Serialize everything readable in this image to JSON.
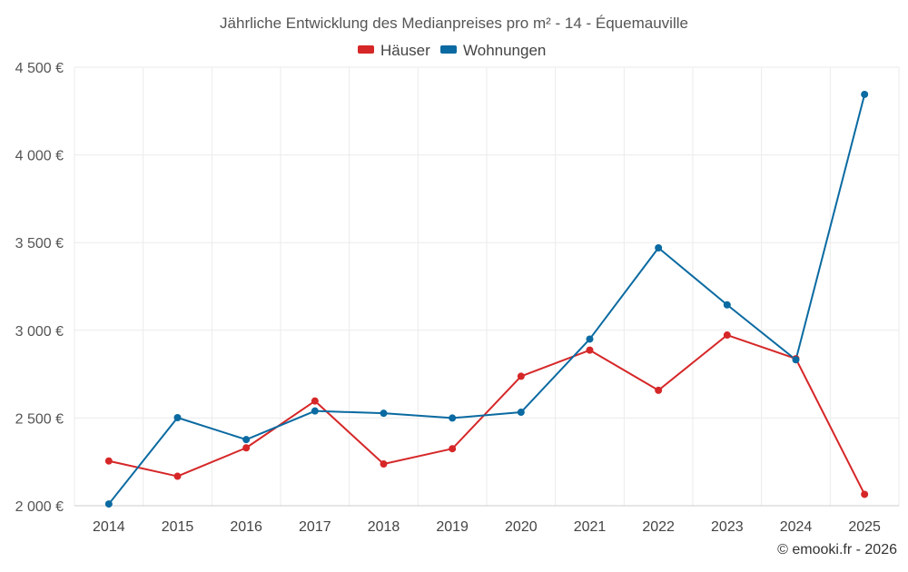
{
  "chart_data": {
    "type": "line",
    "title": "Jährliche Entwicklung des Medianpreises pro m² - 14 - Équemauville",
    "xlabel": "",
    "ylabel": "",
    "categories": [
      "2014",
      "2015",
      "2016",
      "2017",
      "2018",
      "2019",
      "2020",
      "2021",
      "2022",
      "2023",
      "2024",
      "2025"
    ],
    "ylim": [
      2000,
      4500
    ],
    "yticks": [
      2000,
      2500,
      3000,
      3500,
      4000,
      4500
    ],
    "ytick_labels": [
      "2 000 €",
      "2 500 €",
      "3 000 €",
      "3 500 €",
      "4 000 €",
      "4 500 €"
    ],
    "grid": true,
    "legend_position": "top-center",
    "series": [
      {
        "name": "Häuser",
        "color": "#d62728",
        "values": [
          2255,
          2168,
          2330,
          2597,
          2238,
          2325,
          2738,
          2887,
          2658,
          2973,
          2838,
          2065
        ]
      },
      {
        "name": "Wohnungen",
        "color": "#0a6aa1",
        "values": [
          2010,
          2502,
          2377,
          2540,
          2527,
          2500,
          2533,
          2950,
          3470,
          3145,
          2832,
          4345
        ]
      }
    ],
    "credit": "© emooki.fr - 2026"
  }
}
